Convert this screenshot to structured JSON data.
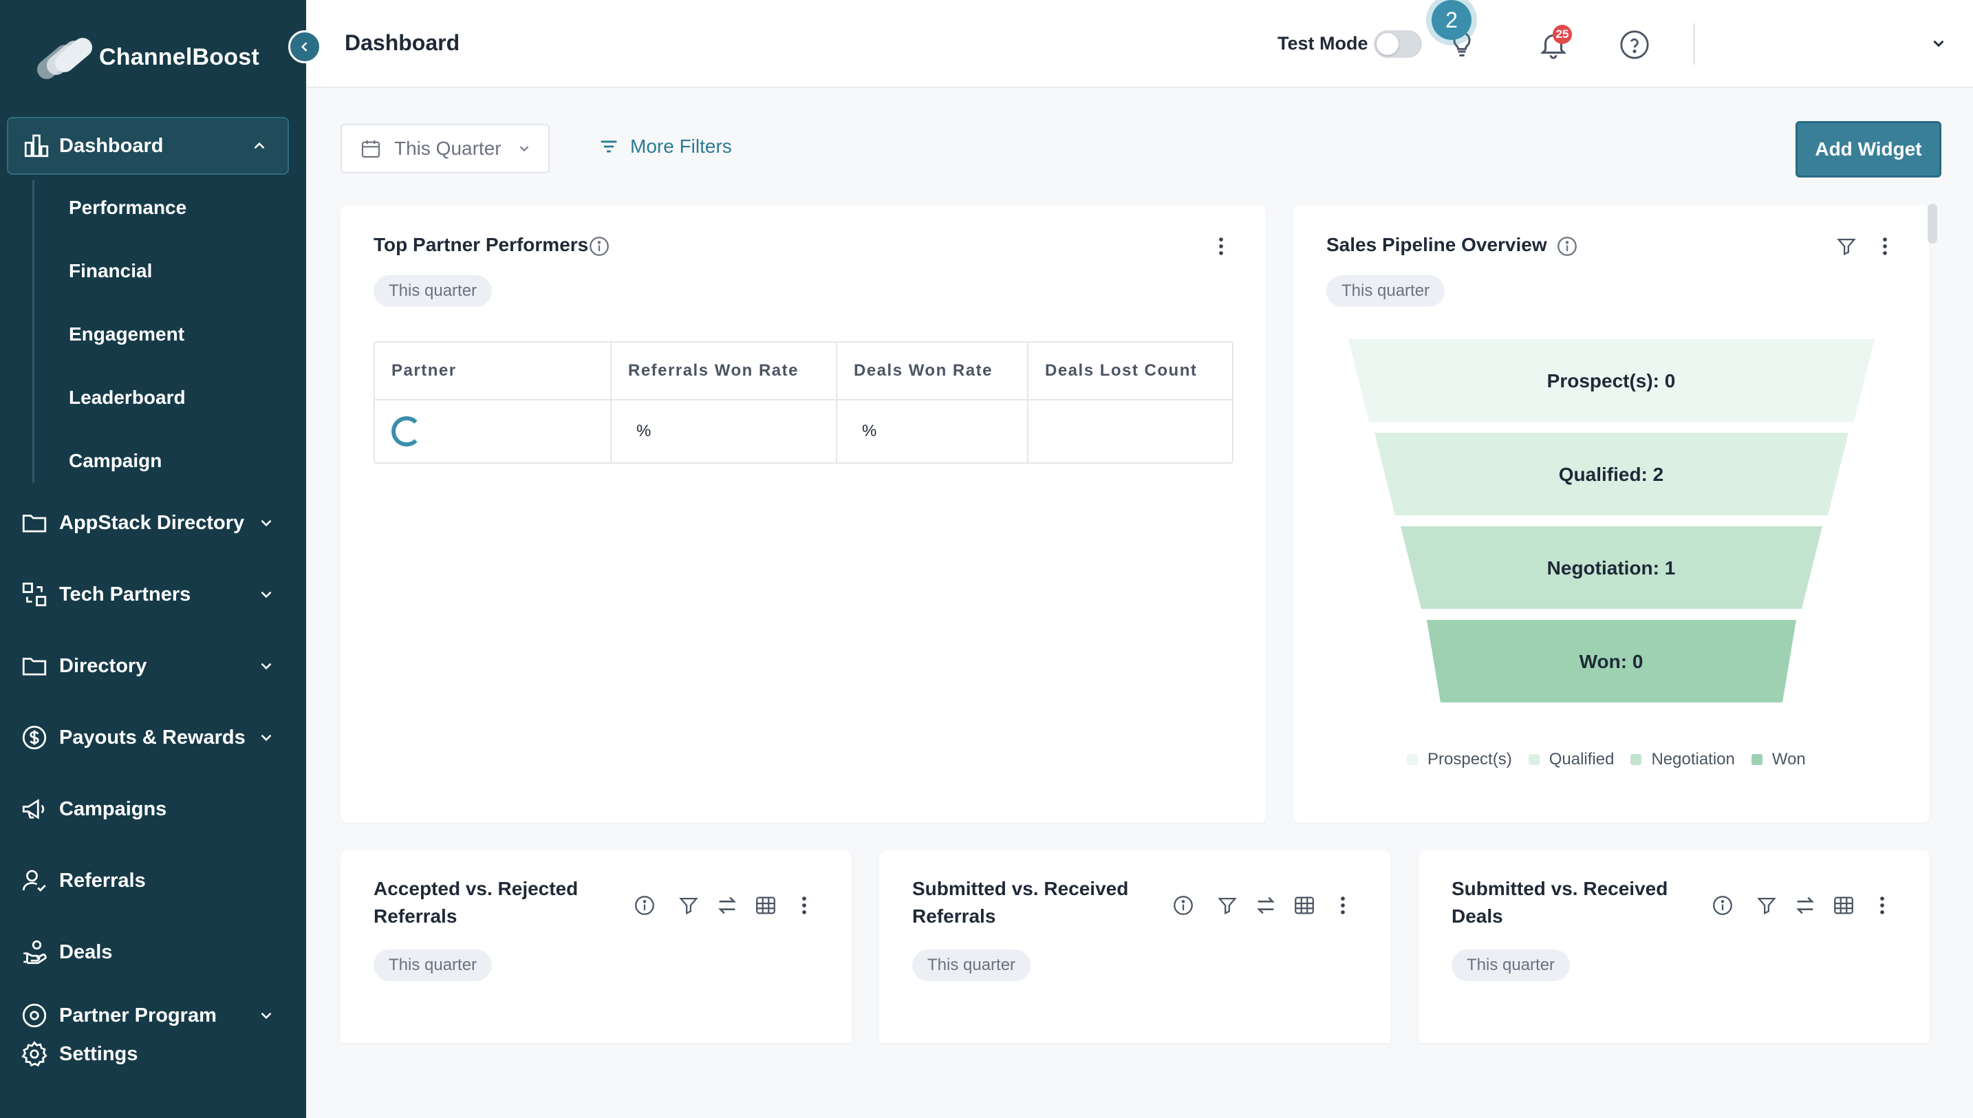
{
  "app": {
    "name": "ChannelBoost"
  },
  "sidebar": {
    "active": {
      "label": "Dashboard",
      "icon": "dashboard-icon"
    },
    "sub_items": [
      "Performance",
      "Financial",
      "Engagement",
      "Leaderboard",
      "Campaign"
    ],
    "items": [
      {
        "label": "AppStack Directory",
        "icon": "folder-icon",
        "expandable": true
      },
      {
        "label": "Tech Partners",
        "icon": "tech-partners-icon",
        "expandable": true
      },
      {
        "label": "Directory",
        "icon": "folder-icon",
        "expandable": true
      },
      {
        "label": "Payouts & Rewards",
        "icon": "dollar-icon",
        "expandable": true
      },
      {
        "label": "Campaigns",
        "icon": "megaphone-icon",
        "expandable": false
      },
      {
        "label": "Referrals",
        "icon": "user-check-icon",
        "expandable": false
      },
      {
        "label": "Deals",
        "icon": "handshake-icon",
        "expandable": false
      },
      {
        "label": "Partner Program",
        "icon": "partner-program-icon",
        "expandable": true
      }
    ],
    "settings_label": "Settings"
  },
  "header": {
    "title": "Dashboard",
    "test_mode_label": "Test Mode",
    "test_mode_on": false,
    "tips_count": "2",
    "notifications_count": "25"
  },
  "filters": {
    "date_range": "This Quarter",
    "more_filters": "More Filters",
    "add_widget": "Add Widget"
  },
  "widgets": {
    "top_performers": {
      "title": "Top Partner Performers",
      "chip": "This quarter",
      "columns": [
        "Partner",
        "Referrals Won Rate",
        "Deals Won Rate",
        "Deals Lost Count"
      ],
      "row": {
        "partner": "",
        "referrals_won_rate": "%",
        "deals_won_rate": "%",
        "deals_lost_count": ""
      }
    },
    "pipeline": {
      "title": "Sales Pipeline Overview",
      "chip": "This quarter",
      "stages": [
        {
          "label": "Prospect(s): 0",
          "legend": "Prospect(s)",
          "color": "#edf7f1"
        },
        {
          "label": "Qualified: 2",
          "legend": "Qualified",
          "color": "#dcefe3"
        },
        {
          "label": "Negotiation: 1",
          "legend": "Negotiation",
          "color": "#c2e4cf"
        },
        {
          "label": "Won: 0",
          "legend": "Won",
          "color": "#9dd1b2"
        }
      ]
    },
    "accepted_rejected": {
      "title_line1": "Accepted vs. Rejected",
      "title_line2": "Referrals",
      "chip": "This quarter"
    },
    "submitted_received_referrals": {
      "title_line1": "Submitted vs. Received",
      "title_line2": "Referrals",
      "chip": "This quarter"
    },
    "submitted_received_deals": {
      "title_line1": "Submitted vs. Received",
      "title_line2": "Deals",
      "chip": "This quarter"
    }
  },
  "colors": {
    "sidebar_bg": "#163a48",
    "accent": "#3a7f98",
    "link": "#2b7a93",
    "badge_red": "#e34949"
  }
}
